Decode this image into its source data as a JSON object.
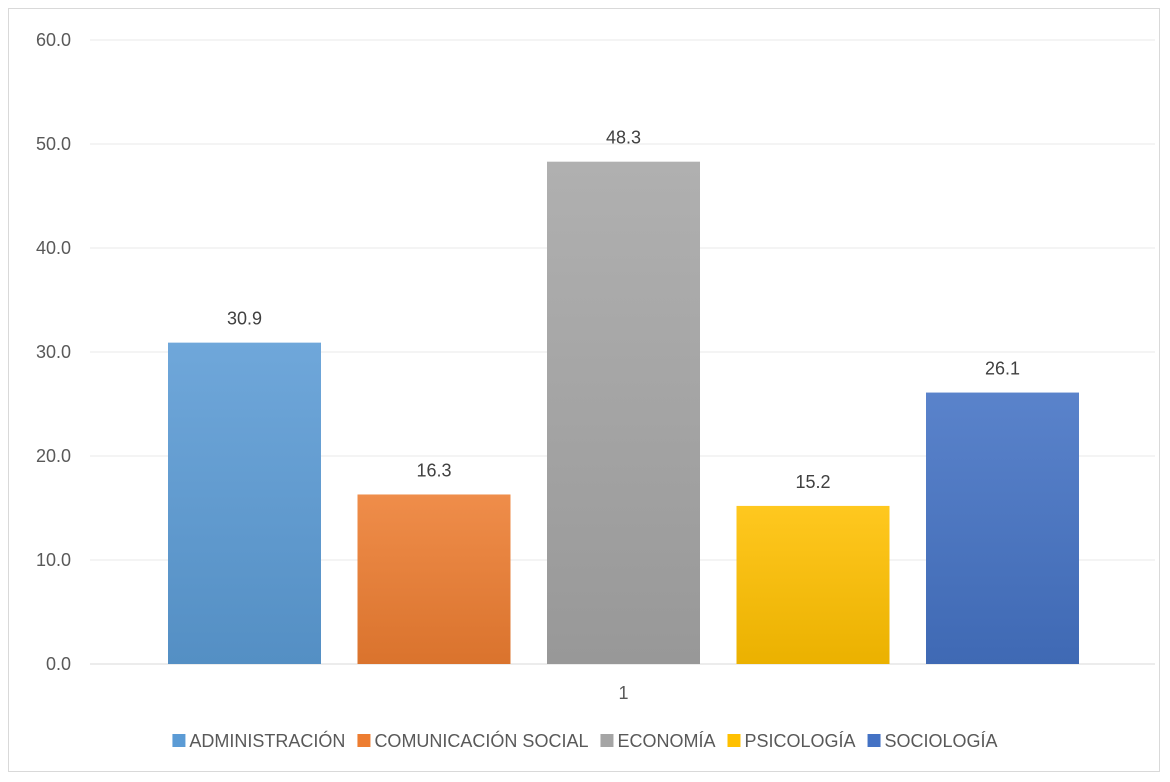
{
  "chart_data": {
    "type": "bar",
    "categories": [
      "1"
    ],
    "series": [
      {
        "name": "ADMINISTRACIÓN",
        "values": [
          30.9
        ],
        "color": "#5b9bd5",
        "label": "30.9"
      },
      {
        "name": "COMUNICACIÓN SOCIAL",
        "values": [
          16.3
        ],
        "color": "#ed7d31",
        "label": "16.3"
      },
      {
        "name": "ECONOMÍA",
        "values": [
          48.3
        ],
        "color": "#a5a5a5",
        "label": "48.3"
      },
      {
        "name": "PSICOLOGÍA",
        "values": [
          15.2
        ],
        "color": "#ffc000",
        "label": "15.2"
      },
      {
        "name": "SOCIOLOGÍA",
        "values": [
          26.1
        ],
        "color": "#4472c4",
        "label": "26.1"
      }
    ],
    "ylim": [
      0,
      60
    ],
    "yticks": [
      "0.0",
      "10.0",
      "20.0",
      "30.0",
      "40.0",
      "50.0",
      "60.0"
    ],
    "grid": true,
    "legend": "bottom"
  }
}
